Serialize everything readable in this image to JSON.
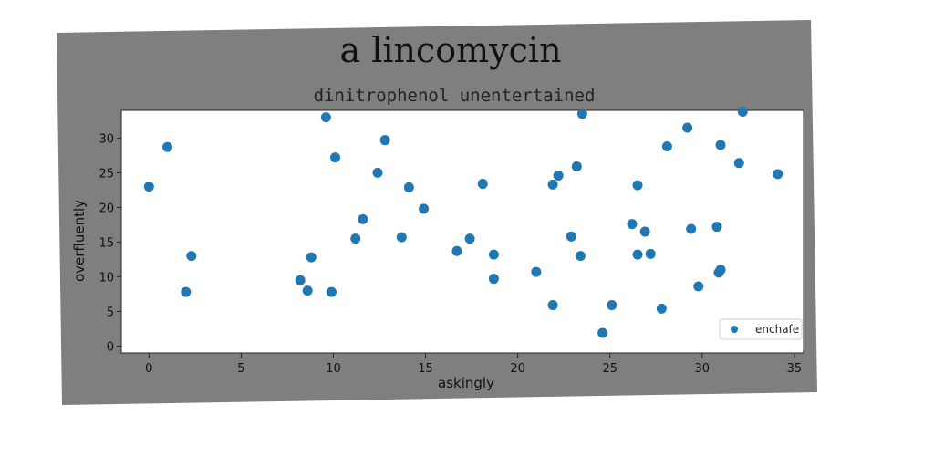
{
  "figure": {
    "background": "#7f7f7f",
    "plot_background": "#ffffff"
  },
  "chart_data": {
    "type": "scatter",
    "title": "a lincomycin",
    "subtitle": "dinitrophenol unentertained",
    "xlabel": "askingly",
    "ylabel": "overfluently",
    "xlim": [
      -1.5,
      35.5
    ],
    "ylim": [
      -1,
      34
    ],
    "xticks": [
      0,
      5,
      10,
      15,
      20,
      25,
      30,
      35
    ],
    "yticks": [
      0,
      5,
      10,
      15,
      20,
      25,
      30
    ],
    "grid": false,
    "legend": {
      "position": "bottom-right"
    },
    "series": [
      {
        "name": "enchafe",
        "color": "#1f77b4",
        "points": [
          [
            0.0,
            23.0
          ],
          [
            1.0,
            28.7
          ],
          [
            2.0,
            7.8
          ],
          [
            2.3,
            13.0
          ],
          [
            8.2,
            9.5
          ],
          [
            8.6,
            8.0
          ],
          [
            8.8,
            12.8
          ],
          [
            9.6,
            33.0
          ],
          [
            9.9,
            7.8
          ],
          [
            10.1,
            27.2
          ],
          [
            11.2,
            15.5
          ],
          [
            11.6,
            18.3
          ],
          [
            12.4,
            25.0
          ],
          [
            12.8,
            29.7
          ],
          [
            13.7,
            15.7
          ],
          [
            14.1,
            22.9
          ],
          [
            14.9,
            19.8
          ],
          [
            16.7,
            13.7
          ],
          [
            17.4,
            15.5
          ],
          [
            18.1,
            23.4
          ],
          [
            18.7,
            13.2
          ],
          [
            18.7,
            9.7
          ],
          [
            21.0,
            10.7
          ],
          [
            21.9,
            5.9
          ],
          [
            21.9,
            23.3
          ],
          [
            22.2,
            24.6
          ],
          [
            22.9,
            15.8
          ],
          [
            23.2,
            25.9
          ],
          [
            23.4,
            13.0
          ],
          [
            23.5,
            33.5
          ],
          [
            24.6,
            1.9
          ],
          [
            25.1,
            5.9
          ],
          [
            26.2,
            17.6
          ],
          [
            26.5,
            23.2
          ],
          [
            26.5,
            13.2
          ],
          [
            26.9,
            16.5
          ],
          [
            27.2,
            13.3
          ],
          [
            27.8,
            5.4
          ],
          [
            28.1,
            28.8
          ],
          [
            29.2,
            31.5
          ],
          [
            29.4,
            16.9
          ],
          [
            29.8,
            8.6
          ],
          [
            30.8,
            17.2
          ],
          [
            30.9,
            10.6
          ],
          [
            31.0,
            29.0
          ],
          [
            31.0,
            11.0
          ],
          [
            32.0,
            26.4
          ],
          [
            32.2,
            33.8
          ],
          [
            34.1,
            24.8
          ]
        ]
      }
    ]
  }
}
